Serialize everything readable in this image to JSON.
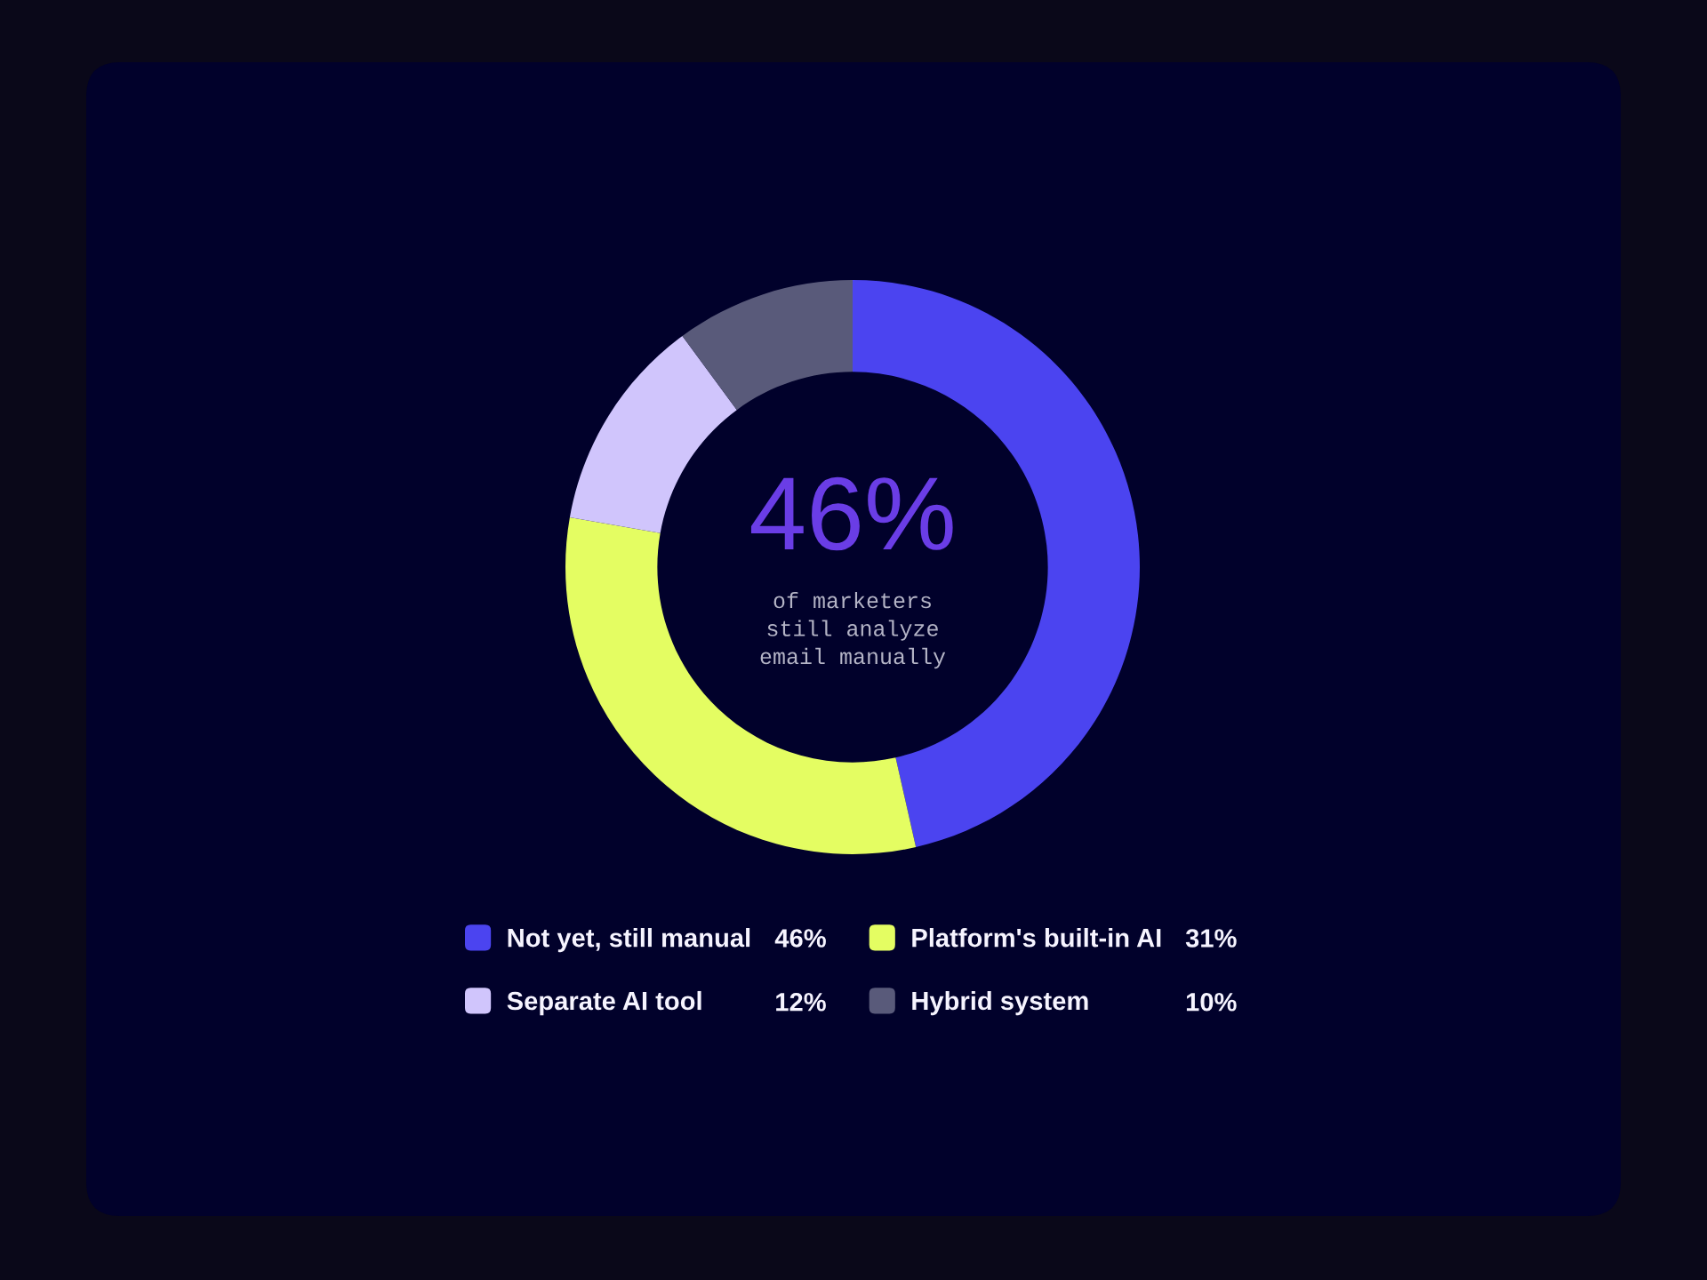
{
  "chart_data": {
    "type": "donut",
    "categories": [
      "Not yet, still manual",
      "Platform's built-in AI",
      "Separate AI tool",
      "Hybrid system"
    ],
    "values": [
      46,
      31,
      12,
      10
    ],
    "value_labels": [
      "46%",
      "31%",
      "12%",
      "10%"
    ],
    "colors": [
      "#4b44f0",
      "#e4fd62",
      "#d0c5fc",
      "#595a7a"
    ],
    "legend": "bottom",
    "annotations": [
      "46%",
      "of marketers\nstill analyze\nemail manually"
    ]
  }
}
